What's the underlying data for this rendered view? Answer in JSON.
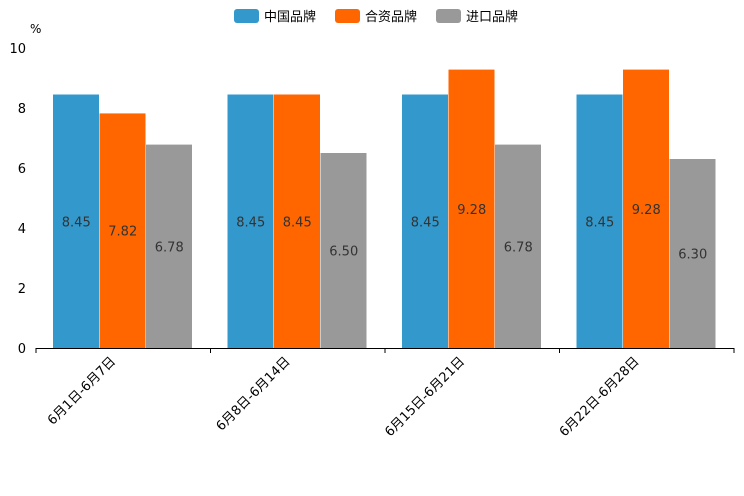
{
  "chart_data": {
    "type": "bar",
    "unit": "%",
    "categories": [
      "6月1日-6月7日",
      "6月8日-6月14日",
      "6月15日-6月21日",
      "6月22日-6月28日"
    ],
    "series": [
      {
        "name": "中国品牌",
        "color": "#3399cc",
        "values": [
          8.45,
          8.45,
          8.45,
          8.45
        ],
        "labels": [
          "8.45",
          "8.45",
          "8.45",
          "8.45"
        ]
      },
      {
        "name": "合资品牌",
        "color": "#ff6600",
        "values": [
          7.82,
          8.45,
          9.28,
          9.28
        ],
        "labels": [
          "7.82",
          "8.45",
          "9.28",
          "9.28"
        ]
      },
      {
        "name": "进口品牌",
        "color": "#999999",
        "values": [
          6.78,
          6.5,
          6.78,
          6.3
        ],
        "labels": [
          "6.78",
          "6.50",
          "6.78",
          "6.30"
        ]
      }
    ],
    "ylim": [
      0,
      10
    ],
    "yticks": [
      "0",
      "2",
      "4",
      "6",
      "8",
      "10"
    ],
    "legend_position": "top-center",
    "grid": false
  }
}
